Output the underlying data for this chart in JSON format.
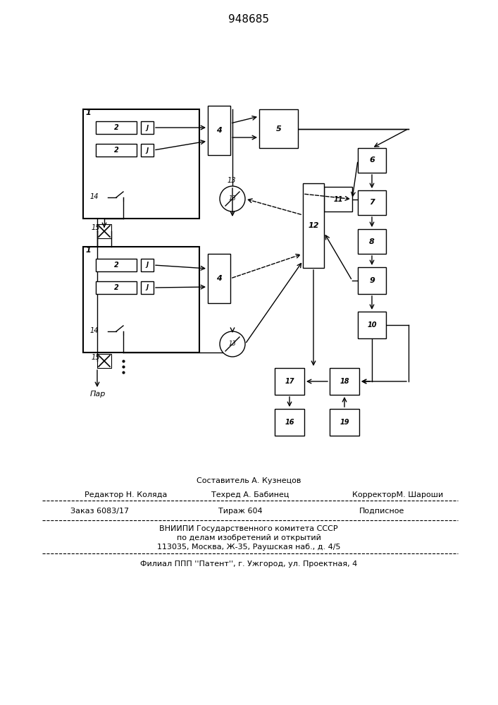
{
  "title": "948685",
  "title_fontsize": 11,
  "background_color": "#ffffff",
  "line_color": "#000000",
  "box_color": "#ffffff",
  "text_color": "#000000",
  "footer_lines": [
    [
      "",
      "Составитель А. Кузнецов",
      ""
    ],
    [
      "Редактор Н. Коляда",
      "Техред А. Бабинец",
      "КорректорМ. Шароши"
    ],
    [
      "Заказ 6083/17",
      "Тираж 604",
      "Подписное"
    ],
    [
      "ВНИИПИ Государственного комитета СССР"
    ],
    [
      "по делам изобретений и открытий"
    ],
    [
      "113035, Москва, Ж-35, Раушская наб., д. 4/5"
    ],
    [
      "Филиал ППП ''Патент'', г. Ужгород, ул. Проектная, 4"
    ]
  ]
}
